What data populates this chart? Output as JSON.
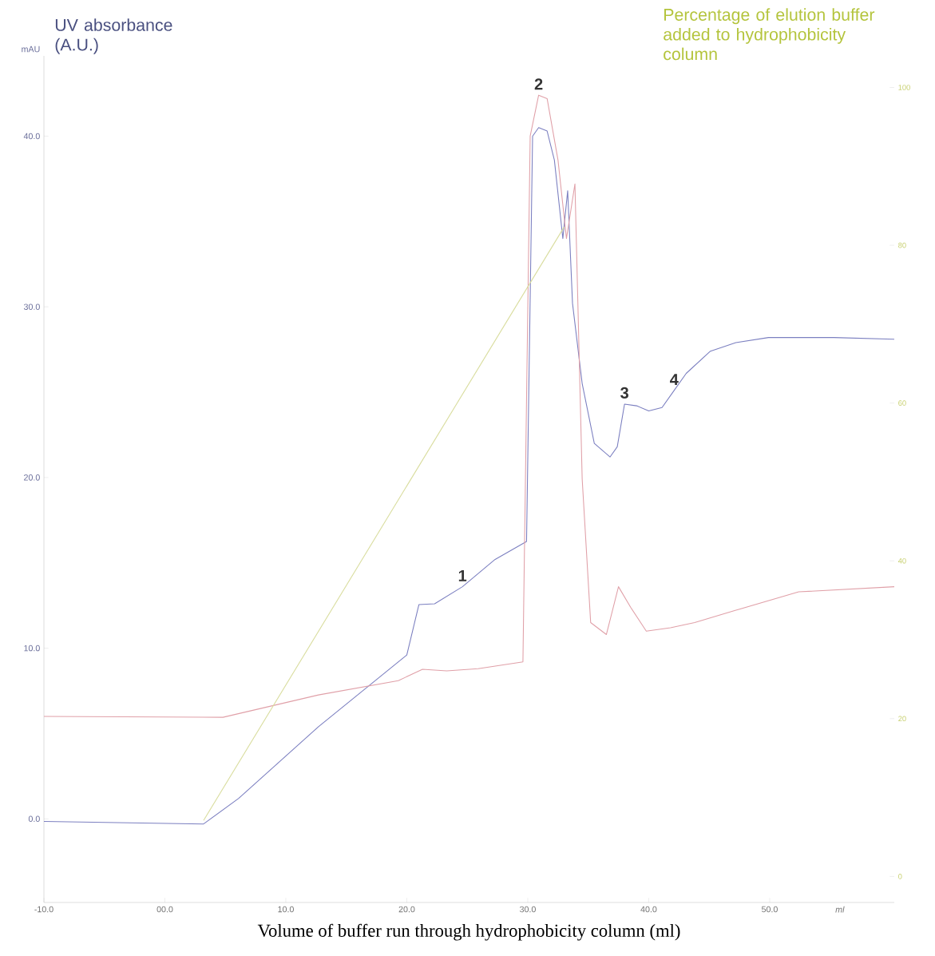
{
  "chart_data": {
    "type": "line",
    "xlabel": "Volume of buffer run through hydrophobicity column (ml)",
    "ylabel": "UV absorbance (A.U.)",
    "y2label": "Percentage of elution buffer added to hydrophobicity column",
    "xlim": [
      -10,
      60.3
    ],
    "ylim": [
      -4.9,
      44.7
    ],
    "y2lim": [
      -3.3,
      104
    ],
    "xticks": [
      {
        "value": -10,
        "label": "-10.0"
      },
      {
        "value": 0,
        "label": "00.0"
      },
      {
        "value": 10,
        "label": "10.0"
      },
      {
        "value": 20,
        "label": "20.0"
      },
      {
        "value": 30,
        "label": "30.0"
      },
      {
        "value": 40,
        "label": "40.0"
      },
      {
        "value": 50,
        "label": "50.0"
      }
    ],
    "yticks": [
      {
        "value": 0,
        "label": "0.0"
      },
      {
        "value": 10,
        "label": "10.0"
      },
      {
        "value": 20,
        "label": "20.0"
      },
      {
        "value": 30,
        "label": "30.0"
      },
      {
        "value": 40,
        "label": "40.0"
      }
    ],
    "y2ticks": [
      0,
      20,
      40,
      60,
      80,
      100
    ],
    "series": [
      {
        "color": "#7b7fc0",
        "x": [
          -10,
          3.2,
          6.1,
          12.7,
          20,
          21.0,
          22.3,
          24.6,
          27.3,
          29.9,
          30.4,
          30.9,
          31.6,
          32.2,
          32.9,
          33.3,
          33.7,
          34.5,
          35.5,
          36.8,
          37.4,
          38.0,
          39.0,
          40.0,
          41.1,
          42.1,
          43.1,
          45.1,
          47.2,
          49.9,
          55.3,
          60.3
        ],
        "values": [
          -0.15,
          -0.3,
          1.2,
          5.4,
          9.6,
          12.55,
          12.6,
          13.6,
          15.2,
          16.25,
          40.0,
          40.5,
          40.3,
          38.6,
          34.0,
          36.8,
          30.2,
          25.5,
          22.0,
          21.2,
          21.8,
          24.3,
          24.2,
          23.9,
          24.1,
          25.1,
          26.1,
          27.4,
          27.9,
          28.2,
          28.2,
          28.1
        ]
      },
      {
        "color": "#e0a0a8",
        "x": [
          -10,
          4.8,
          12.7,
          19.3,
          21.3,
          23.3,
          25.9,
          29.6,
          30.2,
          30.9,
          31.6,
          32.5,
          33.2,
          33.9,
          34.5,
          35.2,
          36.5,
          37.5,
          38.5,
          39.8,
          41.8,
          43.8,
          47.1,
          52.4,
          60.3
        ],
        "values": [
          6.0,
          5.95,
          7.26,
          8.1,
          8.76,
          8.67,
          8.8,
          9.2,
          40.0,
          42.4,
          42.2,
          38.6,
          34.0,
          37.2,
          19.9,
          11.5,
          10.8,
          13.6,
          12.4,
          11.0,
          11.2,
          11.5,
          12.2,
          13.3,
          13.6
        ]
      },
      {
        "color": "#d8dc9c",
        "axis": "y2",
        "x": [
          3.2,
          33.0
        ],
        "values": [
          7.1,
          82.3
        ]
      }
    ],
    "annotations": [
      "mAU",
      "ml",
      {
        "text": "1",
        "x": 24.6,
        "y": 13.6
      },
      {
        "text": "2",
        "x": 30.9,
        "y": 42.4
      },
      {
        "text": "3",
        "x": 38.0,
        "y": 24.3
      },
      {
        "text": "4",
        "x": 42.1,
        "y": 25.1
      }
    ]
  }
}
